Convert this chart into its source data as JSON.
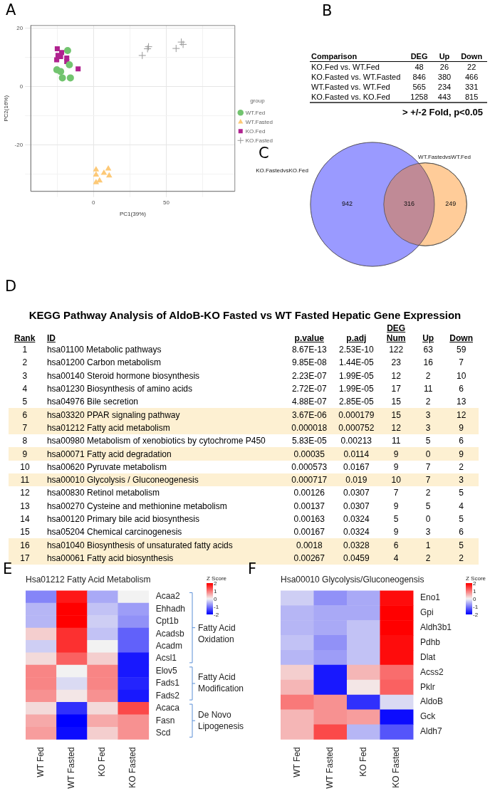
{
  "chart_data": [
    {
      "type": "scatter",
      "xlabel": "PC1(39%)",
      "ylabel": "PC2(16%)",
      "legend_title": "group",
      "legend": "right",
      "grid": true,
      "annotations": [
        "A"
      ],
      "xlim": [
        -43,
        97
      ],
      "ylim": [
        -36,
        21
      ],
      "xticks": [
        {
          "value": -25,
          "label": null
        },
        0,
        {
          "value": 25,
          "label": null
        },
        50,
        {
          "value": 75,
          "label": null
        }
      ],
      "yticks": [
        {
          "value": -30,
          "label": null
        },
        -20,
        {
          "value": -10,
          "label": null
        },
        0,
        {
          "value": 10,
          "label": null
        },
        20
      ],
      "series": [
        {
          "name": "WT.Fed",
          "color": "#72c46f",
          "marker": "circle",
          "x": [
            -17.7,
            -16.5,
            -25.1,
            -22.5,
            -21.3,
            -15.8
          ],
          "values": [
            12.4,
            7.5,
            5.8,
            5.2,
            3.0,
            3.0
          ]
        },
        {
          "name": "WT.Fasted",
          "color": "#fdc977",
          "marker": "triangle",
          "x": [
            1.8,
            10.2,
            7.2,
            1.8,
            10.8,
            4.2,
            1.8
          ],
          "values": [
            -28.5,
            -28.2,
            -29.7,
            -30.3,
            -30.6,
            -32.3,
            -32.9
          ]
        },
        {
          "name": "KO.Fed",
          "color": "#b0228f",
          "marker": "square",
          "x": [
            -24.8,
            -21.8,
            -24.3,
            -22.5,
            -25.2,
            -18.3,
            -18.3,
            -10.5
          ],
          "values": [
            13.0,
            11.7,
            10.7,
            10.3,
            9.2,
            9.8,
            8.6,
            6.1
          ]
        },
        {
          "name": "KO.Fasted",
          "color": "#999999",
          "marker": "cross",
          "x": [
            33.5,
            37.1,
            37.8,
            56.7,
            60.3,
            61.5
          ],
          "values": [
            10.7,
            13.0,
            13.7,
            13.1,
            15.3,
            14.5
          ]
        }
      ]
    },
    {
      "type": "other",
      "annotations": [
        "B",
        "> +/-2 Fold, p<0.05"
      ],
      "categories": [
        "Comparison",
        "DEG",
        "Up",
        "Down"
      ],
      "cell_labels": [
        [
          "KO.Fed vs. WT.Fed",
          "48",
          "26",
          "22"
        ],
        [
          "KO.Fasted vs. WT.Fasted",
          "846",
          "380",
          "466"
        ],
        [
          "WT.Fasted vs. WT.Fed",
          "565",
          "234",
          "331"
        ],
        [
          "KO.Fasted vs. KO.Fed",
          "1258",
          "443",
          "815"
        ]
      ]
    },
    {
      "type": "other",
      "annotations": [
        "C"
      ],
      "categories": [
        "KO.FastedvsKO.Fed",
        null,
        "WT.FastedvsWT.Fed"
      ],
      "values": [
        942,
        316,
        249
      ],
      "data_labels": true,
      "colors": [
        "#9a9aff",
        "#c08a96",
        "#ffcc99"
      ]
    },
    {
      "type": "other",
      "title": "KEGG Pathway Analysis of AldoB-KO Fasted vs WT Fasted Hepatic Gene Expression",
      "annotations": [
        "D"
      ],
      "categories": [
        "Rank",
        "ID",
        "p.value",
        "p.adj",
        "DEG Num",
        "Up",
        "Down"
      ],
      "colors": [
        null,
        null,
        null,
        null,
        null,
        "#fdf0d2",
        "#fdf0d2",
        null,
        "#fdf0d2",
        null,
        "#fdf0d2",
        null,
        null,
        null,
        null,
        "#fdf0d2",
        "#fdf0d2"
      ],
      "cell_labels": [
        [
          "1",
          "hsa01100 Metabolic pathways",
          "8.67E-13",
          "2.53E-10",
          "122",
          "63",
          "59"
        ],
        [
          "2",
          "hsa01200 Carbon metabolism",
          "9.85E-08",
          "1.44E-05",
          "23",
          "16",
          "7"
        ],
        [
          "3",
          "hsa00140 Steroid hormone biosynthesis",
          "2.23E-07",
          "1.99E-05",
          "12",
          "2",
          "10"
        ],
        [
          "4",
          "hsa01230 Biosynthesis of amino acids",
          "2.72E-07",
          "1.99E-05",
          "17",
          "11",
          "6"
        ],
        [
          "5",
          "hsa04976 Bile secretion",
          "4.88E-07",
          "2.85E-05",
          "15",
          "2",
          "13"
        ],
        [
          "6",
          "hsa03320 PPAR signaling pathway",
          "3.67E-06",
          "0.000179",
          "15",
          "3",
          "12"
        ],
        [
          "7",
          "hsa01212 Fatty acid metabolism",
          "0.000018",
          "0.000752",
          "12",
          "3",
          "9"
        ],
        [
          "8",
          "hsa00980 Metabolism of xenobiotics by cytochrome P450",
          "5.83E-05",
          "0.00213",
          "11",
          "5",
          "6"
        ],
        [
          "9",
          "hsa00071 Fatty acid degradation",
          "0.00035",
          "0.0114",
          "9",
          "0",
          "9"
        ],
        [
          "10",
          "hsa00620 Pyruvate metabolism",
          "0.000573",
          "0.0167",
          "9",
          "7",
          "2"
        ],
        [
          "11",
          "hsa00010 Glycolysis / Gluconeogenesis",
          "0.000717",
          "0.019",
          "10",
          "7",
          "3"
        ],
        [
          "12",
          "hsa00830 Retinol metabolism",
          "0.00126",
          "0.0307",
          "7",
          "2",
          "5"
        ],
        [
          "13",
          "hsa00270 Cysteine and methionine metabolism",
          "0.00137",
          "0.0307",
          "9",
          "5",
          "4"
        ],
        [
          "14",
          "hsa00120 Primary bile acid biosynthesis",
          "0.00163",
          "0.0324",
          "5",
          "0",
          "5"
        ],
        [
          "15",
          "hsa05204 Chemical carcinogenesis",
          "0.00167",
          "0.0324",
          "9",
          "3",
          "6"
        ],
        [
          "16",
          "hsa01040 Biosynthesis of unsaturated fatty acids",
          "0.0018",
          "0.0328",
          "6",
          "1",
          "5"
        ],
        [
          "17",
          "hsa00061 Fatty acid biosynthesis",
          "0.00267",
          "0.0459",
          "4",
          "2",
          "2"
        ]
      ]
    },
    {
      "type": "heatmap",
      "title": "Hsa01212 Fatty Acid Metabolism",
      "clabel": "Z Score",
      "annotations": [
        "E"
      ],
      "y2_categories": [
        null,
        null,
        null,
        "Fatty Acid Oxidation",
        null,
        null,
        null,
        "Fatty Acid Modification",
        null,
        null,
        "De Novo Lipogenesis",
        null
      ],
      "clim": [
        -2,
        2
      ],
      "cticks": [
        -2,
        -1,
        0,
        1,
        2
      ],
      "colors": [
        "#0000ff",
        "#f2f2f2",
        "#ff0000"
      ],
      "categories": [
        "WT Fed",
        "WT Fasted",
        "KO Fed",
        "KO Fasted"
      ],
      "y_categories": [
        "Acaa2",
        "Ehhadh",
        "Cpt1b",
        "Acadsb",
        "Acadm",
        "Acsl1",
        "Elov5",
        "Fads1",
        "Fads2",
        "Acaca",
        "Fasn",
        "Scd"
      ],
      "cells": [
        [
          -0.9,
          1.8,
          -0.6,
          0.0
        ],
        [
          -0.5,
          2.0,
          -0.4,
          -0.7
        ],
        [
          -0.5,
          2.0,
          -0.3,
          -0.8
        ],
        [
          0.3,
          1.6,
          -0.4,
          -1.2
        ],
        [
          -0.3,
          1.6,
          0.0,
          -1.2
        ],
        [
          0.2,
          1.2,
          0.3,
          -1.8
        ],
        [
          0.9,
          0.0,
          0.9,
          -1.8
        ],
        [
          0.9,
          -0.2,
          0.9,
          -1.7
        ],
        [
          0.8,
          0.1,
          0.8,
          -1.8
        ],
        [
          0.2,
          -1.6,
          0.2,
          1.4
        ],
        [
          0.6,
          -2.0,
          0.6,
          0.8
        ],
        [
          0.7,
          -1.9,
          0.3,
          0.8
        ]
      ]
    },
    {
      "type": "heatmap",
      "title": "Hsa00010 Glycolysis/Gluconeogensis",
      "clabel": "Z Score",
      "annotations": [
        "F"
      ],
      "clim": [
        -2,
        2
      ],
      "cticks": [
        -2,
        -1,
        0,
        1,
        2
      ],
      "colors": [
        "#0000ff",
        "#f2f2f2",
        "#ff0000"
      ],
      "categories": [
        "WT Fed",
        "WT Fasted",
        "KO Fed",
        "KO Fasted"
      ],
      "y_categories": [
        "Eno1",
        "Gpi",
        "Aldh3b1",
        "Pdhb",
        "Dlat",
        "Acss2",
        "Pklr",
        "AldoB",
        "Gck",
        "Aldh7"
      ],
      "cells": [
        [
          -0.3,
          -0.8,
          -0.6,
          1.9
        ],
        [
          -0.5,
          -0.6,
          -0.6,
          2.0
        ],
        [
          -0.5,
          -0.6,
          -0.4,
          2.0
        ],
        [
          -0.4,
          -0.8,
          -0.4,
          1.9
        ],
        [
          -0.5,
          -0.7,
          -0.4,
          1.9
        ],
        [
          0.3,
          -1.8,
          0.5,
          1.1
        ],
        [
          0.5,
          -1.8,
          0.1,
          1.2
        ],
        [
          1.0,
          0.8,
          -1.6,
          -0.2
        ],
        [
          0.5,
          0.8,
          0.7,
          -1.9
        ],
        [
          0.5,
          1.4,
          -0.5,
          -1.3
        ]
      ]
    }
  ]
}
